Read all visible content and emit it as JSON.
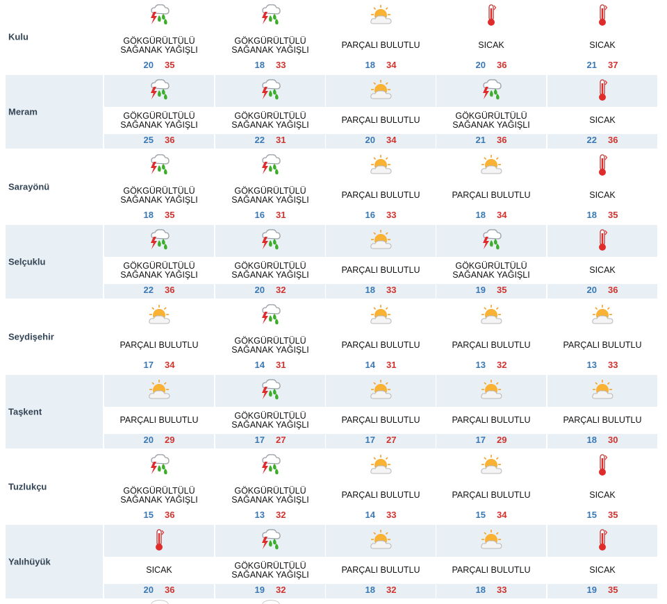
{
  "rows": [
    {
      "city": "Kulu",
      "days": [
        {
          "icon": "thunderstorm-icon",
          "condition": "GÖKGÜRÜLTÜLÜ SAĞANAK YAĞIŞLI",
          "low": "20",
          "high": "35"
        },
        {
          "icon": "thunderstorm-icon",
          "condition": "GÖKGÜRÜLTÜLÜ SAĞANAK YAĞIŞLI",
          "low": "18",
          "high": "33"
        },
        {
          "icon": "partly-cloudy-icon",
          "condition": "PARÇALI BULUTLU",
          "low": "18",
          "high": "34"
        },
        {
          "icon": "thermometer-icon",
          "condition": "SICAK",
          "low": "20",
          "high": "36"
        },
        {
          "icon": "thermometer-icon",
          "condition": "SICAK",
          "low": "21",
          "high": "37"
        }
      ]
    },
    {
      "city": "Meram",
      "days": [
        {
          "icon": "thunderstorm-icon",
          "condition": "GÖKGÜRÜLTÜLÜ SAĞANAK YAĞIŞLI",
          "low": "25",
          "high": "36"
        },
        {
          "icon": "thunderstorm-icon",
          "condition": "GÖKGÜRÜLTÜLÜ SAĞANAK YAĞIŞLI",
          "low": "22",
          "high": "31"
        },
        {
          "icon": "partly-cloudy-icon",
          "condition": "PARÇALI BULUTLU",
          "low": "20",
          "high": "34"
        },
        {
          "icon": "thunderstorm-icon",
          "condition": "GÖKGÜRÜLTÜLÜ SAĞANAK YAĞIŞLI",
          "low": "21",
          "high": "36"
        },
        {
          "icon": "thermometer-icon",
          "condition": "SICAK",
          "low": "22",
          "high": "36"
        }
      ]
    },
    {
      "city": "Sarayönü",
      "days": [
        {
          "icon": "thunderstorm-icon",
          "condition": "GÖKGÜRÜLTÜLÜ SAĞANAK YAĞIŞLI",
          "low": "18",
          "high": "35"
        },
        {
          "icon": "thunderstorm-icon",
          "condition": "GÖKGÜRÜLTÜLÜ SAĞANAK YAĞIŞLI",
          "low": "16",
          "high": "31"
        },
        {
          "icon": "partly-cloudy-icon",
          "condition": "PARÇALI BULUTLU",
          "low": "16",
          "high": "33"
        },
        {
          "icon": "partly-cloudy-icon",
          "condition": "PARÇALI BULUTLU",
          "low": "18",
          "high": "34"
        },
        {
          "icon": "thermometer-icon",
          "condition": "SICAK",
          "low": "18",
          "high": "35"
        }
      ]
    },
    {
      "city": "Selçuklu",
      "days": [
        {
          "icon": "thunderstorm-icon",
          "condition": "GÖKGÜRÜLTÜLÜ SAĞANAK YAĞIŞLI",
          "low": "22",
          "high": "36"
        },
        {
          "icon": "thunderstorm-icon",
          "condition": "GÖKGÜRÜLTÜLÜ SAĞANAK YAĞIŞLI",
          "low": "20",
          "high": "32"
        },
        {
          "icon": "partly-cloudy-icon",
          "condition": "PARÇALI BULUTLU",
          "low": "18",
          "high": "33"
        },
        {
          "icon": "thunderstorm-icon",
          "condition": "GÖKGÜRÜLTÜLÜ SAĞANAK YAĞIŞLI",
          "low": "19",
          "high": "35"
        },
        {
          "icon": "thermometer-icon",
          "condition": "SICAK",
          "low": "20",
          "high": "36"
        }
      ]
    },
    {
      "city": "Seydişehir",
      "days": [
        {
          "icon": "partly-cloudy-icon",
          "condition": "PARÇALI BULUTLU",
          "low": "17",
          "high": "34"
        },
        {
          "icon": "thunderstorm-icon",
          "condition": "GÖKGÜRÜLTÜLÜ SAĞANAK YAĞIŞLI",
          "low": "14",
          "high": "31"
        },
        {
          "icon": "partly-cloudy-icon",
          "condition": "PARÇALI BULUTLU",
          "low": "14",
          "high": "31"
        },
        {
          "icon": "partly-cloudy-icon",
          "condition": "PARÇALI BULUTLU",
          "low": "13",
          "high": "32"
        },
        {
          "icon": "partly-cloudy-icon",
          "condition": "PARÇALI BULUTLU",
          "low": "13",
          "high": "33"
        }
      ]
    },
    {
      "city": "Taşkent",
      "days": [
        {
          "icon": "partly-cloudy-icon",
          "condition": "PARÇALI BULUTLU",
          "low": "20",
          "high": "29"
        },
        {
          "icon": "thunderstorm-icon",
          "condition": "GÖKGÜRÜLTÜLÜ SAĞANAK YAĞIŞLI",
          "low": "17",
          "high": "27"
        },
        {
          "icon": "partly-cloudy-icon",
          "condition": "PARÇALI BULUTLU",
          "low": "17",
          "high": "27"
        },
        {
          "icon": "partly-cloudy-icon",
          "condition": "PARÇALI BULUTLU",
          "low": "17",
          "high": "29"
        },
        {
          "icon": "partly-cloudy-icon",
          "condition": "PARÇALI BULUTLU",
          "low": "18",
          "high": "30"
        }
      ]
    },
    {
      "city": "Tuzlukçu",
      "days": [
        {
          "icon": "thunderstorm-icon",
          "condition": "GÖKGÜRÜLTÜLÜ SAĞANAK YAĞIŞLI",
          "low": "15",
          "high": "36"
        },
        {
          "icon": "thunderstorm-icon",
          "condition": "GÖKGÜRÜLTÜLÜ SAĞANAK YAĞIŞLI",
          "low": "13",
          "high": "32"
        },
        {
          "icon": "partly-cloudy-icon",
          "condition": "PARÇALI BULUTLU",
          "low": "14",
          "high": "33"
        },
        {
          "icon": "partly-cloudy-icon",
          "condition": "PARÇALI BULUTLU",
          "low": "15",
          "high": "34"
        },
        {
          "icon": "thermometer-icon",
          "condition": "SICAK",
          "low": "15",
          "high": "35"
        }
      ]
    },
    {
      "city": "Yalıhüyük",
      "days": [
        {
          "icon": "thermometer-icon",
          "condition": "SICAK",
          "low": "20",
          "high": "36"
        },
        {
          "icon": "thunderstorm-icon",
          "condition": "GÖKGÜRÜLTÜLÜ SAĞANAK YAĞIŞLI",
          "low": "19",
          "high": "32"
        },
        {
          "icon": "partly-cloudy-icon",
          "condition": "PARÇALI BULUTLU",
          "low": "18",
          "high": "32"
        },
        {
          "icon": "partly-cloudy-icon",
          "condition": "PARÇALI BULUTLU",
          "low": "18",
          "high": "33"
        },
        {
          "icon": "thermometer-icon",
          "condition": "SICAK",
          "low": "19",
          "high": "35"
        }
      ]
    }
  ],
  "colors": {
    "low": "#3a78b5",
    "high": "#d2322d",
    "shade": "#e8f0f5",
    "city": "#334455"
  }
}
